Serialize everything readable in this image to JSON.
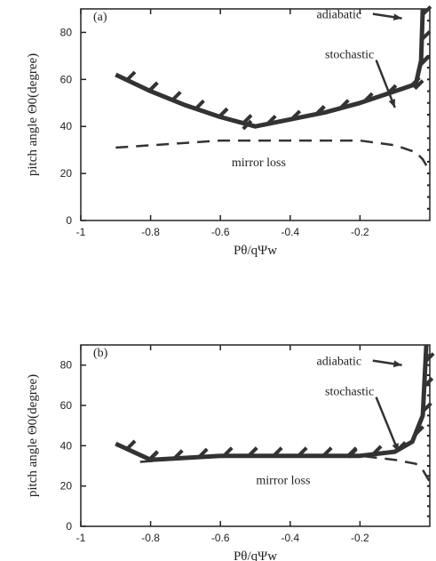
{
  "chart_data": [
    {
      "type": "line",
      "panel_label": "(a)",
      "xlabel": "Pθ/qΨw",
      "ylabel": "pitch angle Θ0(degree)",
      "xlim": [
        -1,
        0
      ],
      "ylim": [
        0,
        90
      ],
      "xticks": [
        -1,
        -0.8,
        -0.6,
        -0.4,
        -0.2
      ],
      "yticks": [
        0,
        20,
        40,
        60,
        80
      ],
      "xtick_labels": [
        "-1",
        "-0.8",
        "-0.6",
        "-0.4",
        "-0.2"
      ],
      "ytick_labels": [
        "0",
        "20",
        "40",
        "60",
        "80"
      ],
      "annotations": [
        {
          "text": "adiabatic",
          "x": -0.26,
          "y": 86,
          "arrow_to": [
            -0.08,
            86
          ]
        },
        {
          "text": "stochastic",
          "x": -0.23,
          "y": 69,
          "arrow_to": [
            -0.1,
            48
          ]
        },
        {
          "text": "mirror loss",
          "x": -0.49,
          "y": 23
        }
      ],
      "series": [
        {
          "style": "solid-hatched",
          "x": [
            -0.9,
            -0.8,
            -0.7,
            -0.6,
            -0.5,
            -0.4,
            -0.3,
            -0.2,
            -0.1,
            -0.04,
            -0.025,
            -0.02
          ],
          "y": [
            62,
            55,
            49,
            44,
            40,
            43,
            46,
            50,
            55,
            58,
            68,
            90
          ]
        },
        {
          "style": "dashed",
          "x": [
            -0.9,
            -0.8,
            -0.6,
            -0.4,
            -0.2,
            -0.1,
            -0.04,
            -0.02,
            0
          ],
          "y": [
            31,
            32,
            34,
            34,
            34,
            32,
            29,
            26,
            21
          ]
        }
      ]
    },
    {
      "type": "line",
      "panel_label": "(b)",
      "xlabel": "Pθ/qΨw",
      "ylabel": "pitch angle Θ0(degree)",
      "xlim": [
        -1,
        0
      ],
      "ylim": [
        0,
        90
      ],
      "xticks": [
        -1,
        -0.8,
        -0.6,
        -0.4,
        -0.2
      ],
      "yticks": [
        0,
        20,
        40,
        60,
        80
      ],
      "xtick_labels": [
        "-1",
        "-0.8",
        "-0.6",
        "-0.4",
        "-0.2"
      ],
      "ytick_labels": [
        "0",
        "20",
        "40",
        "60",
        "80"
      ],
      "annotations": [
        {
          "text": "adiabatic",
          "x": -0.26,
          "y": 80,
          "arrow_to": [
            -0.08,
            80
          ]
        },
        {
          "text": "stochastic",
          "x": -0.23,
          "y": 65,
          "arrow_to": [
            -0.09,
            37
          ]
        },
        {
          "text": "mirror loss",
          "x": -0.42,
          "y": 21
        }
      ],
      "series": [
        {
          "style": "solid-hatched",
          "x": [
            -0.9,
            -0.8,
            -0.6,
            -0.5,
            -0.4,
            -0.2,
            -0.1,
            -0.05,
            -0.02,
            -0.01
          ],
          "y": [
            41,
            33,
            35,
            35,
            35,
            35,
            37,
            42,
            55,
            90
          ]
        },
        {
          "style": "dashed",
          "x": [
            -0.83,
            -0.6,
            -0.4,
            -0.2,
            -0.1,
            -0.04,
            -0.02,
            0
          ],
          "y": [
            32,
            35,
            35,
            35,
            33,
            31,
            28,
            22
          ]
        }
      ]
    }
  ]
}
